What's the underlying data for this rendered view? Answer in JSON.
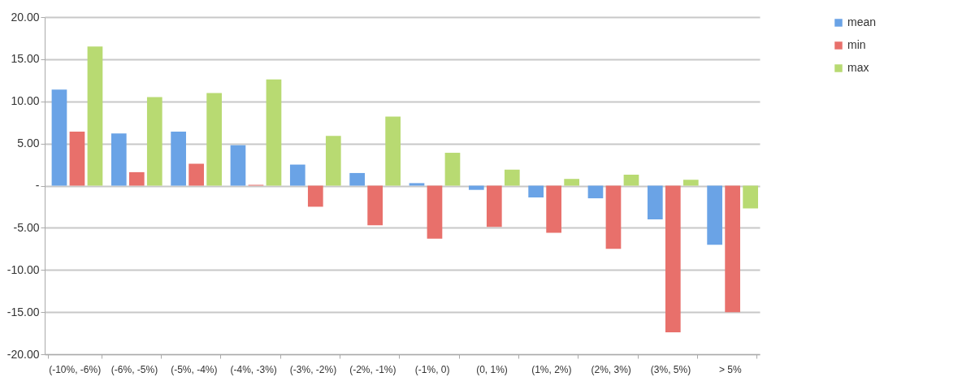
{
  "chart_data": {
    "type": "bar",
    "categories": [
      "(-10%, -6%)",
      "(-6%, -5%)",
      "(-5%, -4%)",
      "(-4%, -3%)",
      "(-3%, -2%)",
      "(-2%, -1%)",
      "(-1%, 0)",
      "(0, 1%)",
      "(1%, 2%)",
      "(2%, 3%)",
      "(3%, 5%)",
      "> 5%"
    ],
    "series": [
      {
        "name": "mean",
        "color": "#6aa3e6",
        "values": [
          11.4,
          6.2,
          6.4,
          4.8,
          2.5,
          1.5,
          0.3,
          -0.5,
          -1.4,
          -1.5,
          -4.0,
          -7.0
        ]
      },
      {
        "name": "min",
        "color": "#e8706b",
        "values": [
          6.4,
          1.6,
          2.6,
          0.1,
          -2.5,
          -4.7,
          -6.3,
          -4.9,
          -5.6,
          -7.5,
          -17.4,
          -15.0
        ]
      },
      {
        "name": "max",
        "color": "#b8da72",
        "values": [
          16.5,
          10.5,
          11.0,
          12.6,
          5.9,
          8.2,
          3.9,
          1.9,
          0.8,
          1.3,
          0.7,
          -2.7
        ]
      }
    ],
    "ylim": [
      -20,
      20
    ],
    "yticks": [
      {
        "value": -20,
        "label": "-20.00"
      },
      {
        "value": -15,
        "label": "-15.00"
      },
      {
        "value": -10,
        "label": "-10.00"
      },
      {
        "value": -5,
        "label": "-5.00"
      },
      {
        "value": 0,
        "label": "-"
      },
      {
        "value": 5,
        "label": "5.00"
      },
      {
        "value": 10,
        "label": "10.00"
      },
      {
        "value": 15,
        "label": "15.00"
      },
      {
        "value": 20,
        "label": "20.00"
      }
    ],
    "grid": "y",
    "legend": "right"
  }
}
